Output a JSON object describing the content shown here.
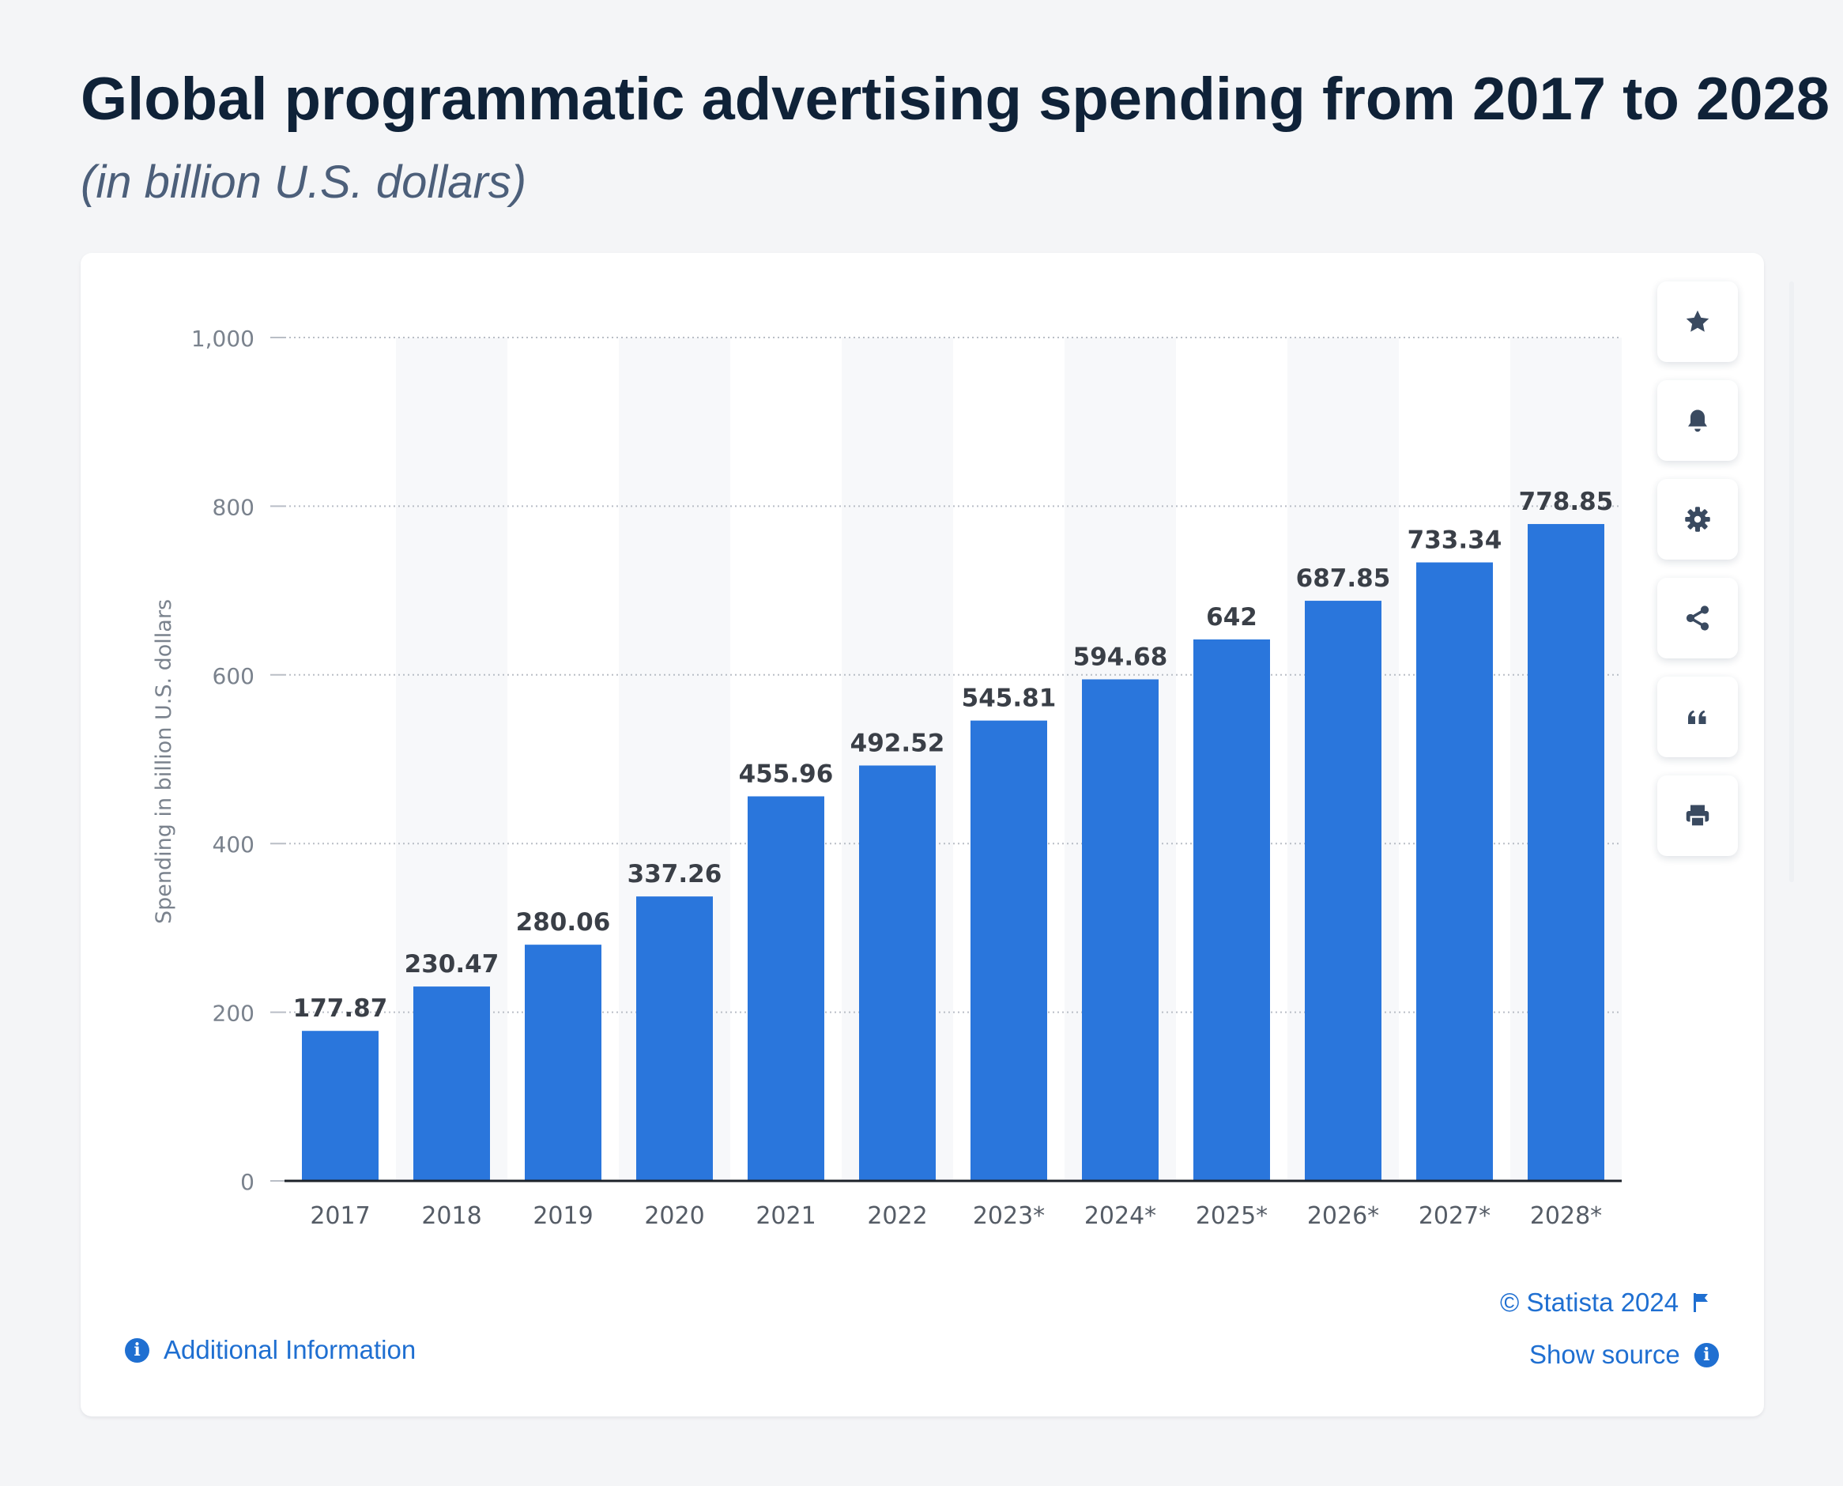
{
  "title": "Global programmatic advertising spending from 2017 to 2028",
  "subtitle": "(in billion U.S. dollars)",
  "toolbar": {
    "buttons": [
      {
        "icon": "star-icon"
      },
      {
        "icon": "bell-icon"
      },
      {
        "icon": "gear-icon"
      },
      {
        "icon": "share-icon"
      },
      {
        "icon": "quote-icon"
      },
      {
        "icon": "print-icon"
      }
    ]
  },
  "footer": {
    "copyright": "© Statista 2024",
    "show_source": "Show source",
    "additional_info": "Additional Information"
  },
  "colors": {
    "bar": "#2a76dc",
    "accent": "#1f6fd1",
    "title": "#0f2238",
    "band": "#f7f8fa"
  },
  "chart_data": {
    "type": "bar",
    "categories": [
      "2017",
      "2018",
      "2019",
      "2020",
      "2021",
      "2022",
      "2023*",
      "2024*",
      "2025*",
      "2026*",
      "2027*",
      "2028*"
    ],
    "values": [
      177.87,
      230.47,
      280.06,
      337.26,
      455.96,
      492.52,
      545.81,
      594.68,
      642,
      687.85,
      733.34,
      778.85
    ],
    "value_labels": [
      "177.87",
      "230.47",
      "280.06",
      "337.26",
      "455.96",
      "492.52",
      "545.81",
      "594.68",
      "642",
      "687.85",
      "733.34",
      "778.85"
    ],
    "ylabel": "Spending in billion U.S. dollars",
    "xlabel": "",
    "ylim": [
      0,
      1000
    ],
    "yticks": [
      0,
      200,
      400,
      600,
      800,
      1000
    ],
    "ytick_labels": [
      "0",
      "200",
      "400",
      "600",
      "800",
      "1,000"
    ],
    "grid": true,
    "legend": "none"
  }
}
